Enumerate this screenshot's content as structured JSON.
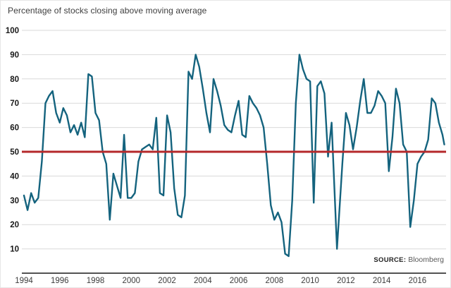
{
  "header": {
    "title": "Percentage of stocks closing above moving average"
  },
  "source": {
    "label": "SOURCE:",
    "value": "Bloomberg"
  },
  "chart_data": {
    "type": "line",
    "title": "Percentage of stocks closing above moving average",
    "xlabel": "",
    "ylabel": "",
    "xlim": [
      1994,
      2017.6
    ],
    "ylim": [
      0,
      100
    ],
    "xticks": [
      1994,
      1996,
      1998,
      2000,
      2002,
      2004,
      2006,
      2008,
      2010,
      2012,
      2014,
      2016
    ],
    "yticks": [
      10,
      20,
      30,
      40,
      50,
      60,
      70,
      80,
      90,
      100
    ],
    "grid": true,
    "grid_color": "#d9d9d9",
    "axis_color": "#1a1a1a",
    "line_color": "#14637e",
    "legend": "none",
    "reference_line": {
      "value": 50,
      "color": "#b5292b"
    },
    "x": [
      1994.0,
      1994.2,
      1994.4,
      1994.6,
      1994.8,
      1995.0,
      1995.2,
      1995.4,
      1995.6,
      1995.8,
      1996.0,
      1996.2,
      1996.4,
      1996.6,
      1996.8,
      1997.0,
      1997.2,
      1997.4,
      1997.6,
      1997.8,
      1998.0,
      1998.2,
      1998.4,
      1998.6,
      1998.8,
      1999.0,
      1999.2,
      1999.4,
      1999.6,
      1999.8,
      2000.0,
      2000.2,
      2000.4,
      2000.6,
      2000.8,
      2001.0,
      2001.2,
      2001.4,
      2001.6,
      2001.8,
      2002.0,
      2002.2,
      2002.4,
      2002.6,
      2002.8,
      2003.0,
      2003.2,
      2003.4,
      2003.6,
      2003.8,
      2004.0,
      2004.2,
      2004.4,
      2004.6,
      2004.8,
      2005.0,
      2005.2,
      2005.4,
      2005.6,
      2005.8,
      2006.0,
      2006.2,
      2006.4,
      2006.6,
      2006.8,
      2007.0,
      2007.2,
      2007.4,
      2007.6,
      2007.8,
      2008.0,
      2008.2,
      2008.4,
      2008.6,
      2008.8,
      2009.0,
      2009.2,
      2009.4,
      2009.6,
      2009.8,
      2010.0,
      2010.2,
      2010.4,
      2010.6,
      2010.8,
      2011.0,
      2011.2,
      2011.5,
      2011.8,
      2012.0,
      2012.2,
      2012.4,
      2012.6,
      2012.8,
      2013.0,
      2013.2,
      2013.4,
      2013.6,
      2013.8,
      2014.0,
      2014.2,
      2014.4,
      2014.6,
      2014.8,
      2015.0,
      2015.2,
      2015.4,
      2015.6,
      2015.8,
      2016.0,
      2016.2,
      2016.4,
      2016.6,
      2016.8,
      2017.0,
      2017.2,
      2017.4,
      2017.5
    ],
    "values": [
      32,
      26,
      33,
      29,
      31,
      46,
      70,
      73,
      75,
      66,
      62,
      68,
      65,
      58,
      61,
      57,
      62,
      56,
      82,
      81,
      66,
      63,
      50,
      45,
      22,
      41,
      36,
      31,
      57,
      31,
      31,
      33,
      46,
      51,
      52,
      53,
      51,
      64,
      33,
      32,
      65,
      58,
      35,
      24,
      23,
      32,
      83,
      80,
      90,
      85,
      76,
      66,
      58,
      80,
      75,
      69,
      61,
      59,
      58,
      65,
      71,
      57,
      56,
      73,
      70,
      68,
      65,
      60,
      45,
      28,
      22,
      25,
      21,
      8,
      7,
      30,
      70,
      90,
      84,
      80,
      79,
      29,
      77,
      79,
      74,
      48,
      62,
      10,
      45,
      66,
      61,
      51,
      60,
      71,
      80,
      66,
      66,
      69,
      75,
      73,
      70,
      42,
      56,
      76,
      70,
      53,
      50,
      19,
      30,
      45,
      48,
      50,
      55,
      72,
      70,
      62,
      57,
      53
    ]
  }
}
